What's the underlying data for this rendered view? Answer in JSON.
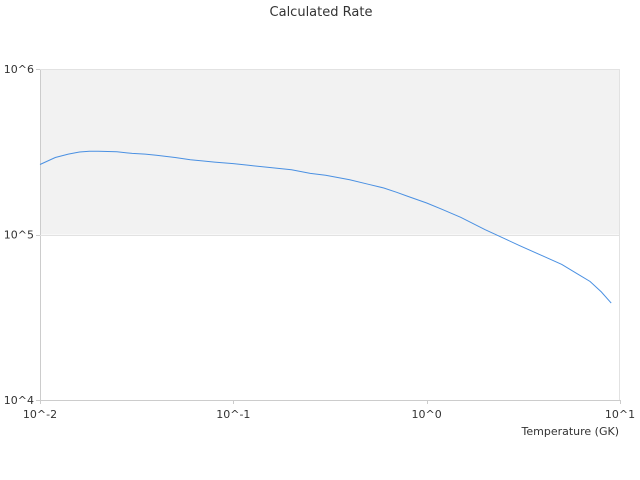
{
  "chart_data": {
    "type": "line",
    "title": "Calculated Rate",
    "xlabel": "Temperature (GK)",
    "ylabel": "",
    "x_scale": "log",
    "y_scale": "log",
    "xlim": [
      0.01,
      10
    ],
    "ylim": [
      10000,
      1000000
    ],
    "x_ticks": [
      {
        "value": 0.01,
        "label": "10^-2"
      },
      {
        "value": 0.1,
        "label": "10^-1"
      },
      {
        "value": 1,
        "label": "10^0"
      },
      {
        "value": 10,
        "label": "10^1"
      }
    ],
    "y_ticks": [
      {
        "value": 10000,
        "label": "10^4"
      },
      {
        "value": 100000,
        "label": "10^5"
      },
      {
        "value": 1000000,
        "label": "10^6"
      }
    ],
    "grid": false,
    "legend": "none",
    "band": {
      "y_from": 100000,
      "y_to": 1000000,
      "color": "#f2f2f2"
    },
    "colors": {
      "line": "#4a90e2",
      "axis": "#cccccc"
    },
    "series": [
      {
        "x": [
          0.01,
          0.012,
          0.014,
          0.016,
          0.018,
          0.02,
          0.025,
          0.03,
          0.035,
          0.04,
          0.05,
          0.06,
          0.07,
          0.08,
          0.1,
          0.12,
          0.15,
          0.2,
          0.25,
          0.3,
          0.4,
          0.5,
          0.6,
          0.7,
          0.8,
          1.0,
          1.2,
          1.5,
          2.0,
          2.5,
          3.0,
          4.0,
          5.0,
          6.0,
          7.0,
          8.0,
          9.0
        ],
        "y": [
          265000,
          292000,
          306000,
          315000,
          318000,
          318000,
          316000,
          309000,
          306000,
          301000,
          292000,
          283000,
          278000,
          274000,
          268000,
          262000,
          255000,
          246000,
          234000,
          228000,
          214000,
          201000,
          191000,
          180000,
          170000,
          155000,
          142000,
          127000,
          107000,
          95000,
          86000,
          74000,
          66000,
          58000,
          52000,
          45000,
          38500
        ]
      }
    ]
  }
}
